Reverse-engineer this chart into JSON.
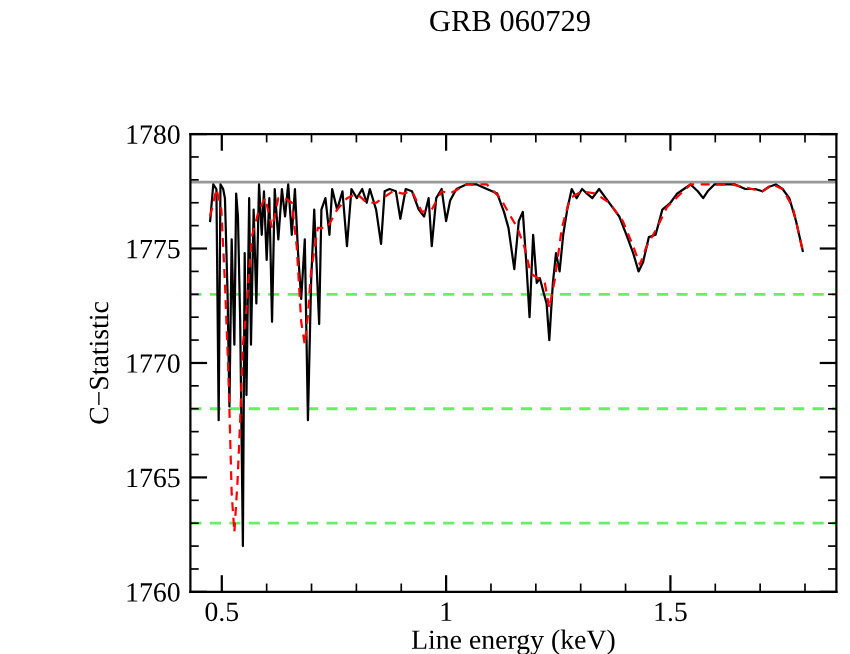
{
  "chart_data": {
    "type": "line",
    "title": "GRB 060729",
    "xlabel": "Line energy (keV)",
    "ylabel": "C−Statistic",
    "xlim": [
      0.43,
      1.87
    ],
    "xticks": [
      0.5,
      1,
      1.5
    ],
    "ylim": [
      1760,
      1780
    ],
    "yticks": [
      1760,
      1765,
      1770,
      1775,
      1780
    ],
    "grid": false,
    "legend": false,
    "series": [
      {
        "color": "#000000",
        "line_style": "solid",
        "x": [
          0.474,
          0.481,
          0.488,
          0.493,
          0.497,
          0.503,
          0.507,
          0.513,
          0.517,
          0.522,
          0.528,
          0.532,
          0.536,
          0.541,
          0.547,
          0.551,
          0.555,
          0.561,
          0.565,
          0.571,
          0.577,
          0.583,
          0.589,
          0.594,
          0.6,
          0.606,
          0.612,
          0.618,
          0.626,
          0.634,
          0.641,
          0.648,
          0.656,
          0.663,
          0.67,
          0.677,
          0.685,
          0.692,
          0.699,
          0.706,
          0.717,
          0.722,
          0.731,
          0.74,
          0.746,
          0.757,
          0.769,
          0.779,
          0.789,
          0.801,
          0.813,
          0.823,
          0.83,
          0.844,
          0.855,
          0.863,
          0.874,
          0.888,
          0.898,
          0.91,
          0.924,
          0.939,
          0.951,
          0.961,
          0.968,
          0.978,
          0.99,
          1.0,
          1.009,
          1.023,
          1.045,
          1.068,
          1.091,
          1.114,
          1.129,
          1.139,
          1.152,
          1.162,
          1.171,
          1.179,
          1.186,
          1.194,
          1.202,
          1.209,
          1.217,
          1.224,
          1.23,
          1.238,
          1.245,
          1.253,
          1.261,
          1.27,
          1.28,
          1.291,
          1.303,
          1.314,
          1.326,
          1.341,
          1.356,
          1.371,
          1.386,
          1.402,
          1.417,
          1.429,
          1.439,
          1.452,
          1.467,
          1.482,
          1.5,
          1.515,
          1.53,
          1.545,
          1.561,
          1.573,
          1.583,
          1.598,
          1.621,
          1.644,
          1.667,
          1.689,
          1.705,
          1.72,
          1.735,
          1.75,
          1.765,
          1.78,
          1.795
        ],
        "values": [
          1776.2,
          1777.8,
          1777.6,
          1767.5,
          1777.8,
          1777.6,
          1777.2,
          1772.9,
          1768.1,
          1775.4,
          1770.8,
          1777.4,
          1776.4,
          1771.8,
          1762.0,
          1774.8,
          1768.6,
          1777.2,
          1770.8,
          1776.7,
          1772.6,
          1777.8,
          1775.6,
          1777.5,
          1774.5,
          1777.2,
          1771.8,
          1777.6,
          1775.4,
          1777.6,
          1776.4,
          1777.8,
          1775.6,
          1777.6,
          1774.8,
          1772.8,
          1775.4,
          1767.5,
          1773.5,
          1776.7,
          1771.7,
          1776.7,
          1777.2,
          1775.6,
          1777.6,
          1776.7,
          1777.5,
          1775.1,
          1777.6,
          1777.2,
          1777.6,
          1777.0,
          1777.6,
          1776.7,
          1775.2,
          1777.5,
          1777.6,
          1777.5,
          1776.3,
          1777.6,
          1777.5,
          1776.7,
          1776.4,
          1777.2,
          1775.1,
          1777.2,
          1777.6,
          1776.2,
          1777.1,
          1777.6,
          1777.8,
          1777.8,
          1777.6,
          1777.4,
          1776.6,
          1775.9,
          1774.1,
          1776.2,
          1776.6,
          1774.3,
          1772.0,
          1775.6,
          1773.5,
          1773.7,
          1773.1,
          1772.6,
          1771.0,
          1773.5,
          1774.8,
          1774.0,
          1775.6,
          1776.7,
          1777.6,
          1777.2,
          1777.6,
          1777.4,
          1777.2,
          1777.6,
          1777.2,
          1776.8,
          1776.4,
          1775.6,
          1774.8,
          1774.0,
          1774.4,
          1775.5,
          1775.6,
          1776.7,
          1777.0,
          1777.4,
          1777.6,
          1777.8,
          1777.5,
          1777.2,
          1777.5,
          1777.8,
          1777.8,
          1777.8,
          1777.6,
          1777.6,
          1777.5,
          1777.7,
          1777.8,
          1777.6,
          1777.2,
          1776.2,
          1774.9
        ]
      },
      {
        "color": "#ff0000",
        "line_style": "dashed",
        "x": [
          0.474,
          0.488,
          0.499,
          0.507,
          0.515,
          0.522,
          0.528,
          0.535,
          0.541,
          0.547,
          0.554,
          0.561,
          0.568,
          0.583,
          0.597,
          0.612,
          0.626,
          0.641,
          0.656,
          0.667,
          0.677,
          0.685,
          0.692,
          0.699,
          0.714,
          0.735,
          0.757,
          0.779,
          0.801,
          0.823,
          0.844,
          0.859,
          0.881,
          0.903,
          0.924,
          0.946,
          0.968,
          0.99,
          1.009,
          1.045,
          1.091,
          1.121,
          1.144,
          1.159,
          1.174,
          1.189,
          1.205,
          1.22,
          1.23,
          1.242,
          1.258,
          1.276,
          1.303,
          1.333,
          1.364,
          1.394,
          1.417,
          1.432,
          1.447,
          1.47,
          1.492,
          1.523,
          1.545,
          1.591,
          1.636,
          1.682,
          1.705,
          1.727,
          1.75,
          1.773,
          1.795
        ],
        "values": [
          1776.4,
          1777.6,
          1776.7,
          1773.5,
          1769.4,
          1764.3,
          1762.6,
          1764.8,
          1767.5,
          1770.8,
          1772.1,
          1774.0,
          1775.6,
          1776.7,
          1777.2,
          1775.9,
          1777.2,
          1777.2,
          1777.0,
          1775.1,
          1771.8,
          1770.8,
          1772.1,
          1774.0,
          1775.9,
          1775.9,
          1776.7,
          1777.2,
          1777.4,
          1777.0,
          1777.0,
          1777.2,
          1777.5,
          1777.4,
          1777.5,
          1776.6,
          1776.7,
          1777.5,
          1777.4,
          1777.8,
          1777.8,
          1777.2,
          1776.4,
          1775.9,
          1775.1,
          1773.9,
          1773.7,
          1773.5,
          1772.4,
          1773.6,
          1775.9,
          1777.2,
          1777.5,
          1777.4,
          1777.0,
          1776.2,
          1775.1,
          1774.3,
          1775.1,
          1775.9,
          1776.8,
          1777.4,
          1777.8,
          1777.8,
          1777.8,
          1777.6,
          1777.5,
          1777.8,
          1777.6,
          1776.8,
          1774.9
        ]
      }
    ],
    "ref_lines": [
      {
        "axis": "y",
        "value": 1777.9,
        "color": "#999999",
        "line_style": "solid"
      },
      {
        "axis": "y",
        "value": 1773,
        "color": "#66ee66",
        "line_style": "dashed"
      },
      {
        "axis": "y",
        "value": 1768,
        "color": "#66ee66",
        "line_style": "dashed"
      },
      {
        "axis": "y",
        "value": 1763,
        "color": "#66ee66",
        "line_style": "dashed"
      }
    ]
  }
}
